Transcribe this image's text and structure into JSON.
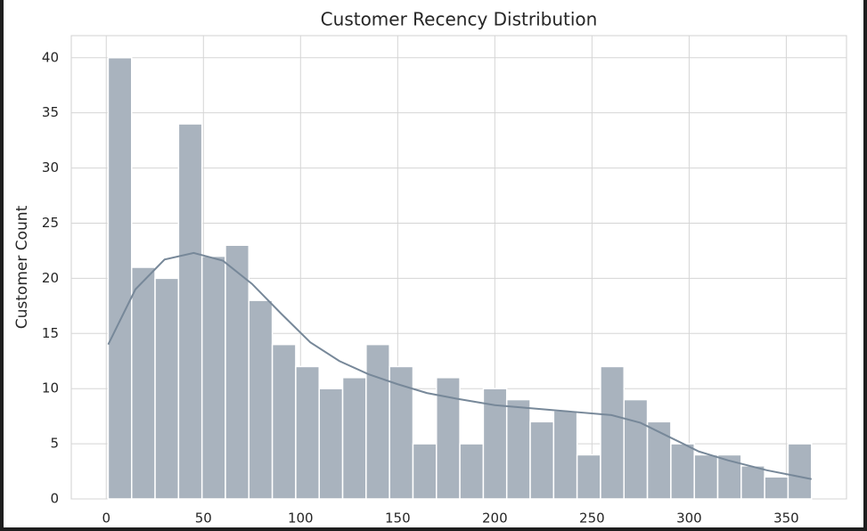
{
  "chart_data": {
    "type": "histogram",
    "title": "Customer Recency Distribution",
    "y_label": "Customer Count",
    "bins": [
      1,
      13.07,
      25.13,
      37.2,
      49.27,
      61.33,
      73.4,
      85.47,
      97.53,
      109.6,
      121.67,
      133.73,
      145.8,
      157.87,
      169.93,
      182,
      194.07,
      206.13,
      218.2,
      230.27,
      242.33,
      254.4,
      266.47,
      278.53,
      290.6,
      302.67,
      314.73,
      326.8,
      338.87,
      350.93,
      363
    ],
    "counts": [
      40,
      21,
      20,
      34,
      22,
      23,
      18,
      14,
      12,
      10,
      11,
      14,
      12,
      5,
      11,
      5,
      10,
      9,
      7,
      8,
      4,
      12,
      9,
      7,
      5,
      4,
      4,
      3,
      2,
      5
    ],
    "color": "#a9b3be",
    "line_color": "#778899",
    "kde": {
      "x": [
        1,
        15,
        30,
        45,
        60,
        75,
        90,
        105,
        120,
        135,
        150,
        165,
        180,
        200,
        220,
        240,
        260,
        275,
        290,
        305,
        320,
        340,
        363
      ],
      "y": [
        14,
        19,
        21.7,
        22.3,
        21.6,
        19.5,
        16.8,
        14.2,
        12.5,
        11.3,
        10.4,
        9.6,
        9.1,
        8.5,
        8.2,
        7.9,
        7.6,
        6.9,
        5.6,
        4.3,
        3.5,
        2.6,
        1.8
      ]
    },
    "xlim": [
      -18,
      381
    ],
    "ylim": [
      0,
      42
    ],
    "xticks": [
      0,
      50,
      100,
      150,
      200,
      250,
      300,
      350
    ],
    "yticks": [
      0,
      5,
      10,
      15,
      20,
      25,
      30,
      35,
      40
    ],
    "grid": true
  }
}
